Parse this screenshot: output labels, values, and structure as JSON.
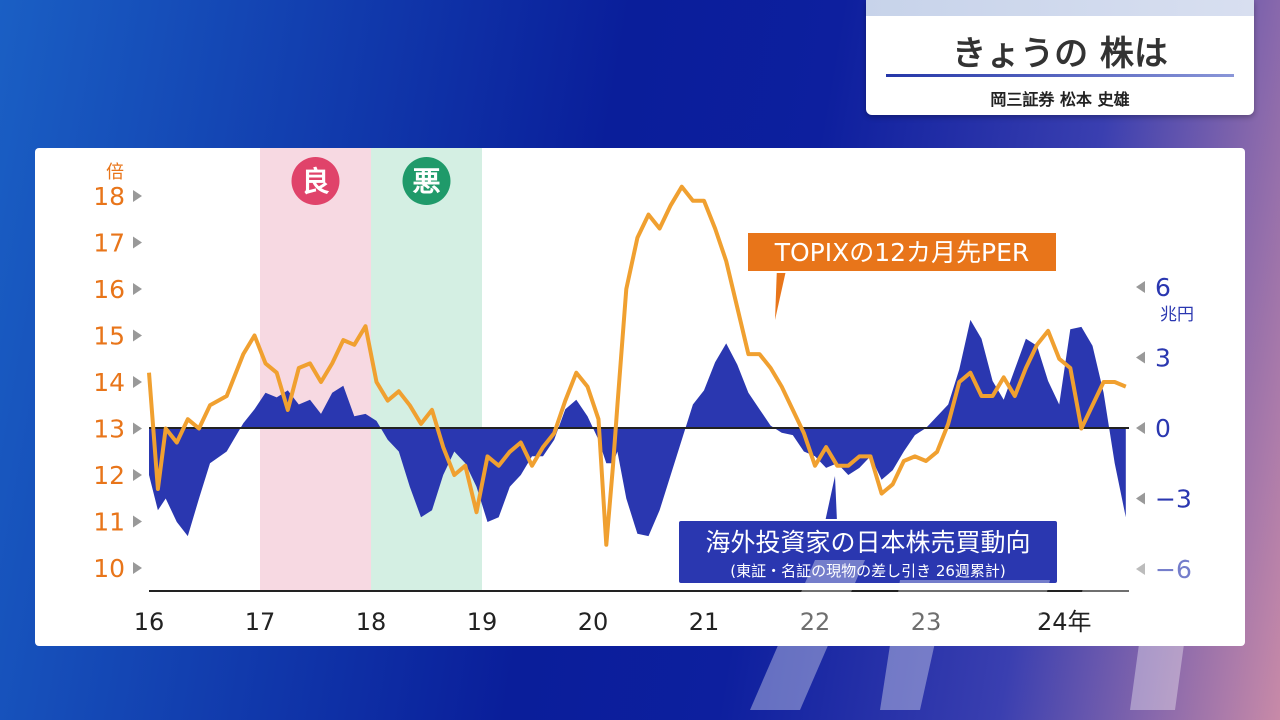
{
  "title_card": {
    "title": "きょうの 株は",
    "subtitle": "岡三証券 松本 史雄"
  },
  "colors": {
    "per_line": "#f0a030",
    "flow_area": "#2a37b0",
    "good_band": "#f7d9e2",
    "bad_band": "#d4efe3",
    "good_badge": "#e0436a",
    "bad_badge": "#1f9a6a",
    "left_axis": "#e8751a",
    "right_axis": "#2a37b0"
  },
  "chart_data": {
    "type": "line",
    "x_ticks": [
      "16",
      "17",
      "18",
      "19",
      "20",
      "21",
      "22",
      "23",
      "24年"
    ],
    "left_axis": {
      "unit": "倍",
      "ticks": [
        "18",
        "17",
        "16",
        "15",
        "14",
        "13",
        "12",
        "11",
        "10"
      ],
      "ylim": [
        10,
        18
      ]
    },
    "right_axis": {
      "unit": "兆円",
      "ticks": [
        "6",
        "3",
        "0",
        "−3",
        "−6"
      ],
      "ylim": [
        -6,
        6
      ]
    },
    "bands": [
      {
        "label": "良",
        "from": 2017.0,
        "to": 2018.0
      },
      {
        "label": "悪",
        "from": 2018.0,
        "to": 2019.0
      }
    ],
    "series": [
      {
        "name": "TOPIXの12カ月先PER",
        "axis": "left",
        "kind": "line",
        "x": [
          2016.0,
          2016.08,
          2016.15,
          2016.25,
          2016.35,
          2016.45,
          2016.55,
          2016.7,
          2016.85,
          2016.95,
          2017.05,
          2017.15,
          2017.25,
          2017.35,
          2017.45,
          2017.55,
          2017.65,
          2017.75,
          2017.85,
          2017.95,
          2018.05,
          2018.15,
          2018.25,
          2018.35,
          2018.45,
          2018.55,
          2018.65,
          2018.75,
          2018.85,
          2018.95,
          2019.05,
          2019.15,
          2019.25,
          2019.35,
          2019.45,
          2019.55,
          2019.65,
          2019.75,
          2019.85,
          2019.95,
          2020.05,
          2020.12,
          2020.18,
          2020.22,
          2020.3,
          2020.4,
          2020.5,
          2020.6,
          2020.7,
          2020.8,
          2020.9,
          2021.0,
          2021.1,
          2021.2,
          2021.3,
          2021.4,
          2021.5,
          2021.6,
          2021.7,
          2021.8,
          2021.9,
          2022.0,
          2022.1,
          2022.2,
          2022.3,
          2022.4,
          2022.5,
          2022.6,
          2022.7,
          2022.8,
          2022.9,
          2023.0,
          2023.1,
          2023.2,
          2023.3,
          2023.4,
          2023.5,
          2023.6,
          2023.7,
          2023.8,
          2023.9,
          2024.0,
          2024.1,
          2024.2,
          2024.3,
          2024.4,
          2024.5,
          2024.6,
          2024.7,
          2024.8
        ],
        "values": [
          14.2,
          11.7,
          13.0,
          12.7,
          13.2,
          13.0,
          13.5,
          13.7,
          14.6,
          15.0,
          14.4,
          14.2,
          13.4,
          14.3,
          14.4,
          14.0,
          14.4,
          14.9,
          14.8,
          15.2,
          14.0,
          13.6,
          13.8,
          13.5,
          13.1,
          13.4,
          12.6,
          12.0,
          12.2,
          11.2,
          12.4,
          12.2,
          12.5,
          12.7,
          12.2,
          12.6,
          12.9,
          13.6,
          14.2,
          13.9,
          13.2,
          10.5,
          12.2,
          13.5,
          16.0,
          17.1,
          17.6,
          17.3,
          17.8,
          18.2,
          17.9,
          17.9,
          17.3,
          16.6,
          15.6,
          14.6,
          14.6,
          14.3,
          13.9,
          13.4,
          12.9,
          12.2,
          12.6,
          12.2,
          12.2,
          12.4,
          12.4,
          11.6,
          11.8,
          12.3,
          12.4,
          12.3,
          12.5,
          13.1,
          14.0,
          14.2,
          13.7,
          13.7,
          14.1,
          13.7,
          14.3,
          14.8,
          15.1,
          14.5,
          14.3,
          13.0,
          13.5,
          14.0,
          14.0,
          13.9
        ]
      },
      {
        "name": "海外投資家の日本株売買動向",
        "axis": "right",
        "kind": "area",
        "x": [
          2016.0,
          2016.08,
          2016.15,
          2016.25,
          2016.35,
          2016.45,
          2016.55,
          2016.7,
          2016.85,
          2016.95,
          2017.05,
          2017.15,
          2017.25,
          2017.35,
          2017.45,
          2017.55,
          2017.65,
          2017.75,
          2017.85,
          2017.95,
          2018.05,
          2018.15,
          2018.25,
          2018.35,
          2018.45,
          2018.55,
          2018.65,
          2018.75,
          2018.85,
          2018.95,
          2019.05,
          2019.15,
          2019.25,
          2019.35,
          2019.45,
          2019.55,
          2019.65,
          2019.75,
          2019.85,
          2019.95,
          2020.05,
          2020.12,
          2020.18,
          2020.22,
          2020.3,
          2020.4,
          2020.5,
          2020.6,
          2020.7,
          2020.8,
          2020.9,
          2021.0,
          2021.1,
          2021.2,
          2021.3,
          2021.4,
          2021.5,
          2021.6,
          2021.7,
          2021.8,
          2021.9,
          2022.0,
          2022.1,
          2022.2,
          2022.3,
          2022.4,
          2022.5,
          2022.6,
          2022.7,
          2022.8,
          2022.9,
          2023.0,
          2023.1,
          2023.2,
          2023.3,
          2023.4,
          2023.5,
          2023.6,
          2023.7,
          2023.8,
          2023.9,
          2024.0,
          2024.1,
          2024.2,
          2024.3,
          2024.4,
          2024.5,
          2024.6,
          2024.7,
          2024.8
        ],
        "values": [
          -2.0,
          -3.5,
          -3.0,
          -4.0,
          -4.6,
          -3.0,
          -1.5,
          -1.0,
          0.2,
          0.8,
          1.5,
          1.3,
          1.6,
          1.0,
          1.2,
          0.6,
          1.5,
          1.8,
          0.5,
          0.6,
          0.3,
          -0.5,
          -1.0,
          -2.5,
          -3.8,
          -3.5,
          -2.0,
          -1.0,
          -1.5,
          -2.5,
          -4.0,
          -3.8,
          -2.5,
          -2.0,
          -1.2,
          -1.2,
          -0.5,
          0.8,
          1.2,
          0.5,
          -0.5,
          -1.5,
          -1.5,
          -1.0,
          -3.0,
          -4.5,
          -4.6,
          -3.5,
          -2.0,
          -0.5,
          1.0,
          1.6,
          2.8,
          3.6,
          2.7,
          1.5,
          0.8,
          0.1,
          -0.2,
          -0.3,
          -1.0,
          -1.2,
          -1.7,
          -1.5,
          -2.0,
          -1.7,
          -1.2,
          -2.2,
          -1.8,
          -1.0,
          -0.3,
          0.0,
          0.5,
          1.0,
          2.5,
          4.6,
          3.8,
          2.0,
          1.2,
          2.5,
          3.8,
          3.5,
          2.0,
          1.0,
          4.2,
          4.3,
          3.5,
          1.5,
          -1.5,
          -3.8
        ]
      }
    ],
    "annotations": [
      {
        "text": "TOPIXの12カ月先PER"
      },
      {
        "text": "海外投資家の日本株売買動向",
        "subtext": "(東証・名証の現物の差し引き 26週累計)"
      }
    ]
  }
}
